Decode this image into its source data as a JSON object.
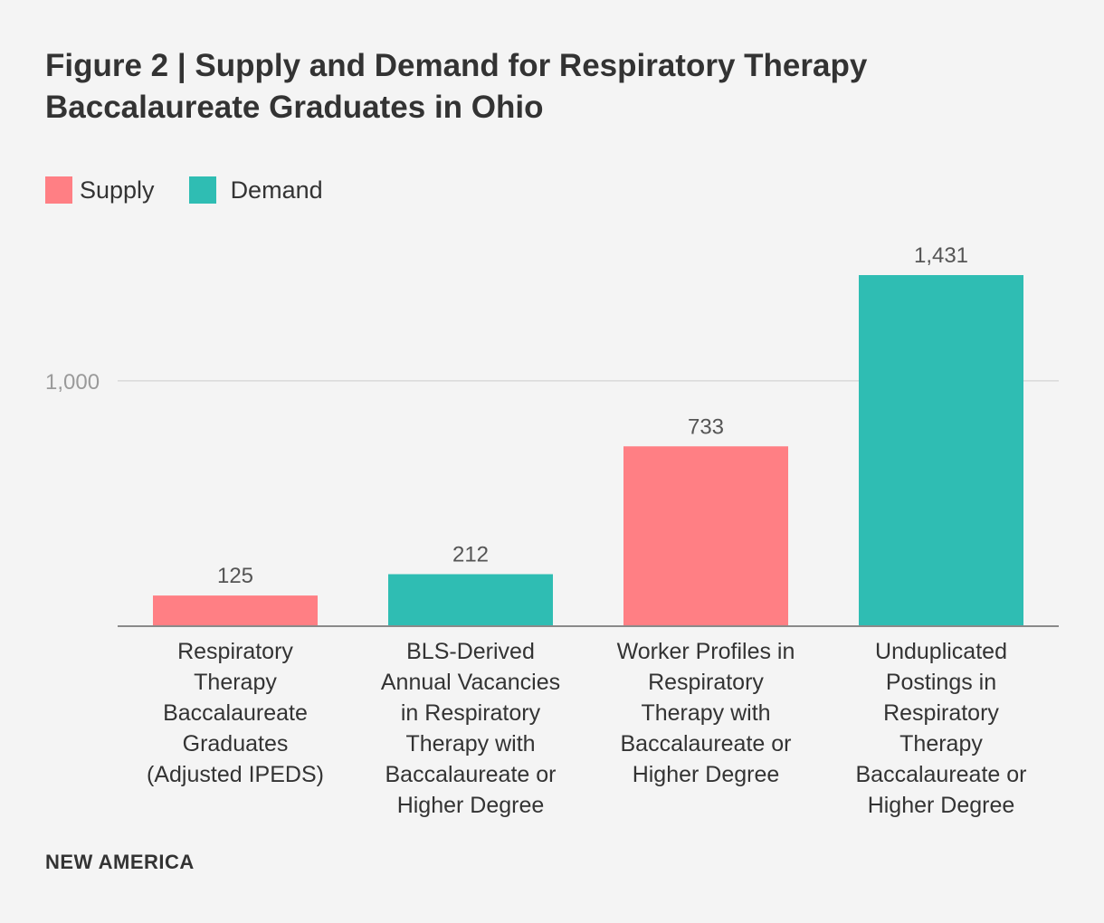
{
  "title": "Figure 2 | Supply and Demand for Respiratory Therapy Baccalaureate Graduates in Ohio",
  "legend": [
    {
      "name": "Supply",
      "color": "#ff7f84"
    },
    {
      "name": "Demand",
      "color": "#2fbdb3"
    }
  ],
  "footer": "NEW AMERICA",
  "colors": {
    "supply": "#ff7f84",
    "demand": "#2fbdb3",
    "gridline": "#d9d9d9",
    "axis": "#8a8a8a",
    "tick_text": "#9a9a9a",
    "value_text": "#555555"
  },
  "chart_data": {
    "type": "bar",
    "title": "Figure 2 | Supply and Demand for Respiratory Therapy Baccalaureate Graduates in Ohio",
    "xlabel": "",
    "ylabel": "",
    "ylim": [
      0,
      1431
    ],
    "yticks": [
      1000
    ],
    "ytick_labels": [
      "1,000"
    ],
    "grid": true,
    "legend_position": "top-left",
    "categories": [
      "Respiratory Therapy Baccalaureate Graduates (Adjusted IPEDS)",
      "BLS-Derived Annual Vacancies in Respiratory Therapy with Baccalaureate or Higher Degree",
      "Worker Profiles in Respiratory Therapy with Baccalaureate or Higher Degree",
      "Unduplicated Postings in Respiratory Therapy Baccalaureate or Higher Degree"
    ],
    "category_lines": [
      [
        "Respiratory",
        "Therapy",
        "Baccalaureate",
        "Graduates",
        "(Adjusted IPEDS)"
      ],
      [
        "BLS-Derived",
        "Annual Vacancies",
        "in Respiratory",
        "Therapy with",
        "Baccalaureate or",
        "Higher Degree"
      ],
      [
        "Worker Profiles in",
        "Respiratory",
        "Therapy with",
        "Baccalaureate or",
        "Higher Degree"
      ],
      [
        "Unduplicated",
        "Postings in",
        "Respiratory",
        "Therapy",
        "Baccalaureate or",
        "Higher Degree"
      ]
    ],
    "values": [
      125,
      212,
      733,
      1431
    ],
    "value_labels": [
      "125",
      "212",
      "733",
      "1,431"
    ],
    "series_type": [
      "Supply",
      "Demand",
      "Supply",
      "Demand"
    ]
  }
}
